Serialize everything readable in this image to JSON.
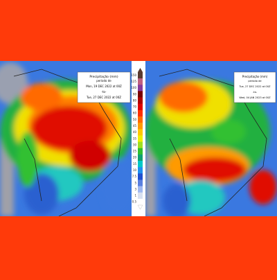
{
  "left_map": {
    "legend": {
      "title": "Precipitação (mm)",
      "subtitle": "período de",
      "start": "Mon, 19 DEC 2022 at 00Z",
      "separator": "-to-",
      "end": "Tue, 27 DEC 2022 at 00Z"
    }
  },
  "right_map": {
    "legend": {
      "title": "Precipitação (mm)",
      "subtitle": "período de",
      "start": "Tue, 27 DEC 2022 at 00Z",
      "separator": "-to-",
      "end": "Wed, 04 JAN 2023 at 00Z"
    }
  },
  "colorbar": {
    "labels": [
      "150",
      "125",
      "100",
      "90",
      "80",
      "70",
      "60",
      "50",
      "45",
      "40",
      "35",
      "30",
      "25",
      "20",
      "15",
      "10",
      "7.5",
      "5",
      "3",
      "1",
      "0.5"
    ],
    "colors": [
      "#5a3a2e",
      "#c06080",
      "#8a3a9a",
      "#7a0000",
      "#b00000",
      "#e00000",
      "#ff3000",
      "#ff6a00",
      "#ff9a00",
      "#ffc800",
      "#f0f000",
      "#a0e020",
      "#30c030",
      "#10a070",
      "#00c8c8",
      "#2090f0",
      "#2050d0",
      "#5a80e0",
      "#a0b8f0",
      "#d8e0f0",
      "#ffffff"
    ]
  }
}
